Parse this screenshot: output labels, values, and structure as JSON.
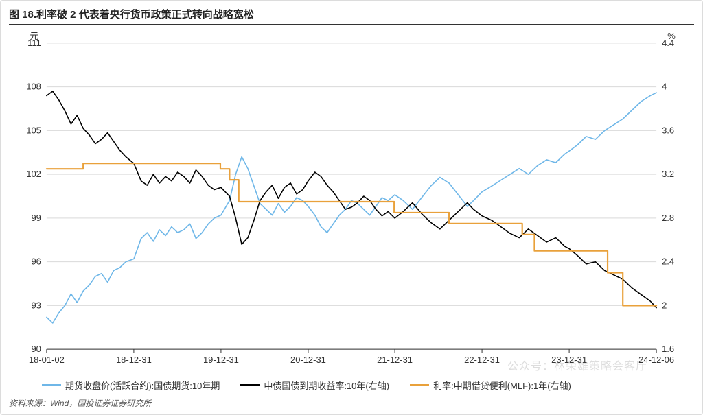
{
  "title": "图 18.利率破 2 代表着央行货币政策正式转向战略宽松",
  "source": "资料来源：Wind，国投证券证券研究所",
  "watermark": "公众号：林荣雄策略会客厅",
  "chart": {
    "type": "line",
    "background_color": "#ffffff",
    "grid_color": "#d9d9d9",
    "tick_color": "#333333",
    "font_family": "Microsoft YaHei",
    "title_fontsize": 15,
    "label_fontsize": 13,
    "tick_fontsize": 13,
    "line_width_main": 1.6,
    "line_width_mlf": 2.2,
    "left_axis": {
      "label": "元",
      "min": 90,
      "max": 111,
      "step": 3,
      "ticks": [
        90,
        93,
        96,
        99,
        102,
        105,
        108,
        111
      ]
    },
    "right_axis": {
      "label": "%",
      "min": 1.6,
      "max": 4.4,
      "step": 0.4,
      "ticks": [
        1.6,
        2.0,
        2.4,
        2.8,
        3.2,
        3.6,
        4.0,
        4.4
      ]
    },
    "x_axis": {
      "labels": [
        "18-01-02",
        "18-12-31",
        "19-12-31",
        "20-12-31",
        "21-12-31",
        "22-12-31",
        "23-12-31",
        "24-12-06"
      ],
      "positions": [
        0,
        0.143,
        0.286,
        0.429,
        0.571,
        0.714,
        0.857,
        1.0
      ]
    },
    "series": [
      {
        "id": "futures",
        "label": "期货收盘价(活跃合约):国债期货:10年期",
        "color": "#6fb7e8",
        "axis": "left",
        "points": [
          [
            0.0,
            92.2
          ],
          [
            0.01,
            91.8
          ],
          [
            0.02,
            92.5
          ],
          [
            0.03,
            93.0
          ],
          [
            0.04,
            93.8
          ],
          [
            0.05,
            93.2
          ],
          [
            0.06,
            94.0
          ],
          [
            0.07,
            94.4
          ],
          [
            0.08,
            95.0
          ],
          [
            0.09,
            95.2
          ],
          [
            0.1,
            94.6
          ],
          [
            0.11,
            95.4
          ],
          [
            0.12,
            95.6
          ],
          [
            0.13,
            96.0
          ],
          [
            0.143,
            96.2
          ],
          [
            0.155,
            97.6
          ],
          [
            0.165,
            98.0
          ],
          [
            0.175,
            97.4
          ],
          [
            0.185,
            98.2
          ],
          [
            0.195,
            97.8
          ],
          [
            0.205,
            98.4
          ],
          [
            0.215,
            98.0
          ],
          [
            0.225,
            98.2
          ],
          [
            0.235,
            98.6
          ],
          [
            0.245,
            97.6
          ],
          [
            0.255,
            98.0
          ],
          [
            0.265,
            98.6
          ],
          [
            0.275,
            99.0
          ],
          [
            0.286,
            99.2
          ],
          [
            0.3,
            100.2
          ],
          [
            0.31,
            102.0
          ],
          [
            0.32,
            103.2
          ],
          [
            0.33,
            102.4
          ],
          [
            0.34,
            101.2
          ],
          [
            0.35,
            100.0
          ],
          [
            0.36,
            99.6
          ],
          [
            0.37,
            99.2
          ],
          [
            0.38,
            100.0
          ],
          [
            0.39,
            99.4
          ],
          [
            0.4,
            99.8
          ],
          [
            0.41,
            100.4
          ],
          [
            0.42,
            100.2
          ],
          [
            0.429,
            99.8
          ],
          [
            0.44,
            99.2
          ],
          [
            0.45,
            98.4
          ],
          [
            0.46,
            98.0
          ],
          [
            0.47,
            98.6
          ],
          [
            0.48,
            99.2
          ],
          [
            0.49,
            99.6
          ],
          [
            0.5,
            100.2
          ],
          [
            0.51,
            100.0
          ],
          [
            0.52,
            99.6
          ],
          [
            0.53,
            99.2
          ],
          [
            0.54,
            99.8
          ],
          [
            0.55,
            100.4
          ],
          [
            0.56,
            100.2
          ],
          [
            0.571,
            100.6
          ],
          [
            0.585,
            100.2
          ],
          [
            0.6,
            99.6
          ],
          [
            0.615,
            100.4
          ],
          [
            0.63,
            101.2
          ],
          [
            0.645,
            101.8
          ],
          [
            0.66,
            101.4
          ],
          [
            0.675,
            100.6
          ],
          [
            0.69,
            99.8
          ],
          [
            0.7,
            100.2
          ],
          [
            0.714,
            100.8
          ],
          [
            0.73,
            101.2
          ],
          [
            0.745,
            101.6
          ],
          [
            0.76,
            102.0
          ],
          [
            0.775,
            102.4
          ],
          [
            0.79,
            102.0
          ],
          [
            0.805,
            102.6
          ],
          [
            0.82,
            103.0
          ],
          [
            0.835,
            102.8
          ],
          [
            0.85,
            103.4
          ],
          [
            0.857,
            103.6
          ],
          [
            0.87,
            104.0
          ],
          [
            0.885,
            104.6
          ],
          [
            0.9,
            104.4
          ],
          [
            0.915,
            105.0
          ],
          [
            0.93,
            105.4
          ],
          [
            0.945,
            105.8
          ],
          [
            0.96,
            106.4
          ],
          [
            0.975,
            107.0
          ],
          [
            0.99,
            107.4
          ],
          [
            1.0,
            107.6
          ]
        ]
      },
      {
        "id": "yield10y",
        "label": "中债国债到期收益率:10年(右轴)",
        "color": "#000000",
        "axis": "right",
        "points": [
          [
            0.0,
            3.92
          ],
          [
            0.01,
            3.96
          ],
          [
            0.02,
            3.88
          ],
          [
            0.03,
            3.78
          ],
          [
            0.04,
            3.66
          ],
          [
            0.05,
            3.74
          ],
          [
            0.06,
            3.62
          ],
          [
            0.07,
            3.56
          ],
          [
            0.08,
            3.48
          ],
          [
            0.09,
            3.52
          ],
          [
            0.1,
            3.58
          ],
          [
            0.11,
            3.5
          ],
          [
            0.12,
            3.42
          ],
          [
            0.13,
            3.36
          ],
          [
            0.143,
            3.3
          ],
          [
            0.155,
            3.14
          ],
          [
            0.165,
            3.1
          ],
          [
            0.175,
            3.2
          ],
          [
            0.185,
            3.12
          ],
          [
            0.195,
            3.18
          ],
          [
            0.205,
            3.14
          ],
          [
            0.215,
            3.22
          ],
          [
            0.225,
            3.18
          ],
          [
            0.235,
            3.12
          ],
          [
            0.245,
            3.24
          ],
          [
            0.255,
            3.18
          ],
          [
            0.265,
            3.1
          ],
          [
            0.275,
            3.06
          ],
          [
            0.286,
            3.08
          ],
          [
            0.3,
            3.0
          ],
          [
            0.31,
            2.8
          ],
          [
            0.32,
            2.56
          ],
          [
            0.33,
            2.62
          ],
          [
            0.34,
            2.78
          ],
          [
            0.35,
            2.96
          ],
          [
            0.36,
            3.04
          ],
          [
            0.37,
            3.1
          ],
          [
            0.38,
            2.98
          ],
          [
            0.39,
            3.08
          ],
          [
            0.4,
            3.12
          ],
          [
            0.41,
            3.02
          ],
          [
            0.42,
            3.06
          ],
          [
            0.429,
            3.14
          ],
          [
            0.44,
            3.22
          ],
          [
            0.45,
            3.18
          ],
          [
            0.46,
            3.1
          ],
          [
            0.47,
            3.04
          ],
          [
            0.48,
            2.96
          ],
          [
            0.49,
            2.88
          ],
          [
            0.5,
            2.9
          ],
          [
            0.51,
            2.94
          ],
          [
            0.52,
            3.0
          ],
          [
            0.53,
            2.96
          ],
          [
            0.54,
            2.88
          ],
          [
            0.55,
            2.82
          ],
          [
            0.56,
            2.86
          ],
          [
            0.571,
            2.8
          ],
          [
            0.585,
            2.86
          ],
          [
            0.6,
            2.94
          ],
          [
            0.615,
            2.84
          ],
          [
            0.63,
            2.76
          ],
          [
            0.645,
            2.7
          ],
          [
            0.66,
            2.78
          ],
          [
            0.675,
            2.86
          ],
          [
            0.69,
            2.94
          ],
          [
            0.7,
            2.88
          ],
          [
            0.714,
            2.82
          ],
          [
            0.73,
            2.78
          ],
          [
            0.745,
            2.72
          ],
          [
            0.76,
            2.66
          ],
          [
            0.775,
            2.62
          ],
          [
            0.79,
            2.7
          ],
          [
            0.805,
            2.64
          ],
          [
            0.82,
            2.58
          ],
          [
            0.835,
            2.62
          ],
          [
            0.85,
            2.54
          ],
          [
            0.857,
            2.52
          ],
          [
            0.87,
            2.46
          ],
          [
            0.885,
            2.38
          ],
          [
            0.9,
            2.4
          ],
          [
            0.915,
            2.32
          ],
          [
            0.93,
            2.28
          ],
          [
            0.945,
            2.24
          ],
          [
            0.96,
            2.16
          ],
          [
            0.975,
            2.1
          ],
          [
            0.99,
            2.04
          ],
          [
            1.0,
            1.98
          ]
        ]
      },
      {
        "id": "mlf",
        "label": "利率:中期借贷便利(MLF):1年(右轴)",
        "color": "#e9a13b",
        "axis": "right",
        "points": [
          [
            0.0,
            3.25
          ],
          [
            0.06,
            3.25
          ],
          [
            0.06,
            3.3
          ],
          [
            0.285,
            3.3
          ],
          [
            0.285,
            3.25
          ],
          [
            0.3,
            3.25
          ],
          [
            0.3,
            3.15
          ],
          [
            0.315,
            3.15
          ],
          [
            0.315,
            2.95
          ],
          [
            0.57,
            2.95
          ],
          [
            0.57,
            2.85
          ],
          [
            0.66,
            2.85
          ],
          [
            0.66,
            2.75
          ],
          [
            0.78,
            2.75
          ],
          [
            0.78,
            2.65
          ],
          [
            0.8,
            2.65
          ],
          [
            0.8,
            2.5
          ],
          [
            0.92,
            2.5
          ],
          [
            0.92,
            2.3
          ],
          [
            0.945,
            2.3
          ],
          [
            0.945,
            2.0
          ],
          [
            1.0,
            2.0
          ]
        ]
      }
    ]
  }
}
